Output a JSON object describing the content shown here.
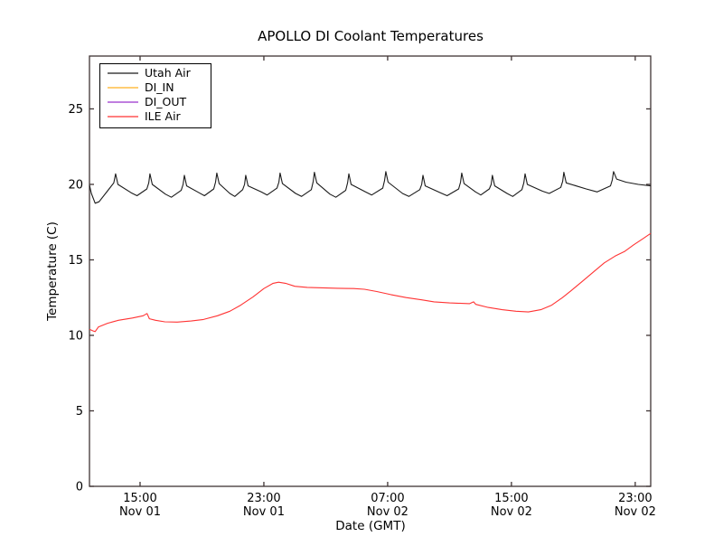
{
  "page": {
    "background": "#ffffff"
  },
  "frame": {
    "spine_color": "#3f3434",
    "tick_color": "#3f3434",
    "text_color": "#000000"
  },
  "chart_data": {
    "type": "line",
    "title": "APOLLO DI Coolant Temperatures",
    "xlabel": "Date (GMT)",
    "ylabel": "Temperature (C)",
    "grid": false,
    "legend_position": "upper-left",
    "x_unit": "hours since Nov 01 00:00 GMT",
    "xlim": [
      11.73,
      48.0
    ],
    "ylim": [
      0,
      28.5
    ],
    "y_ticks": [
      0,
      5,
      10,
      15,
      20,
      25
    ],
    "x_ticks": [
      {
        "value": 15,
        "label_time": "15:00",
        "label_date": "Nov 01"
      },
      {
        "value": 23,
        "label_time": "23:00",
        "label_date": "Nov 01"
      },
      {
        "value": 31,
        "label_time": "07:00",
        "label_date": "Nov 02"
      },
      {
        "value": 39,
        "label_time": "15:00",
        "label_date": "Nov 02"
      },
      {
        "value": 47,
        "label_time": "23:00",
        "label_date": "Nov 02"
      }
    ],
    "series": [
      {
        "name": "Utah Air",
        "color": "#1a1a1a",
        "points": [
          [
            11.73,
            19.95
          ],
          [
            11.85,
            19.4
          ],
          [
            12.1,
            18.75
          ],
          [
            12.35,
            18.85
          ],
          [
            13.0,
            19.7
          ],
          [
            13.3,
            20.1
          ],
          [
            13.42,
            20.7
          ],
          [
            13.57,
            20.0
          ],
          [
            14.42,
            19.45
          ],
          [
            14.8,
            19.25
          ],
          [
            15.44,
            19.7
          ],
          [
            15.56,
            20.1
          ],
          [
            15.64,
            20.7
          ],
          [
            15.79,
            20.0
          ],
          [
            16.64,
            19.35
          ],
          [
            17.02,
            19.15
          ],
          [
            17.66,
            19.6
          ],
          [
            17.78,
            20.0
          ],
          [
            17.86,
            20.6
          ],
          [
            18.01,
            19.9
          ],
          [
            18.81,
            19.45
          ],
          [
            19.16,
            19.25
          ],
          [
            19.76,
            19.7
          ],
          [
            19.88,
            20.15
          ],
          [
            19.96,
            20.75
          ],
          [
            20.11,
            20.05
          ],
          [
            20.8,
            19.4
          ],
          [
            21.12,
            19.2
          ],
          [
            21.63,
            19.65
          ],
          [
            21.75,
            20.0
          ],
          [
            21.83,
            20.6
          ],
          [
            21.98,
            19.9
          ],
          [
            22.83,
            19.5
          ],
          [
            23.21,
            19.3
          ],
          [
            23.85,
            19.75
          ],
          [
            23.97,
            20.15
          ],
          [
            24.05,
            20.75
          ],
          [
            24.2,
            20.05
          ],
          [
            25.05,
            19.4
          ],
          [
            25.43,
            19.2
          ],
          [
            26.07,
            19.65
          ],
          [
            26.19,
            20.2
          ],
          [
            26.27,
            20.8
          ],
          [
            26.42,
            20.1
          ],
          [
            27.27,
            19.35
          ],
          [
            27.65,
            19.15
          ],
          [
            28.29,
            19.6
          ],
          [
            28.41,
            20.1
          ],
          [
            28.49,
            20.7
          ],
          [
            28.64,
            20.0
          ],
          [
            29.57,
            19.5
          ],
          [
            29.97,
            19.3
          ],
          [
            30.68,
            19.75
          ],
          [
            30.8,
            20.25
          ],
          [
            30.88,
            20.85
          ],
          [
            31.03,
            20.15
          ],
          [
            31.96,
            19.4
          ],
          [
            32.37,
            19.2
          ],
          [
            33.08,
            19.65
          ],
          [
            33.2,
            20.0
          ],
          [
            33.28,
            20.6
          ],
          [
            33.43,
            19.9
          ],
          [
            34.41,
            19.45
          ],
          [
            34.84,
            19.25
          ],
          [
            35.59,
            19.7
          ],
          [
            35.71,
            20.15
          ],
          [
            35.79,
            20.75
          ],
          [
            35.94,
            20.05
          ],
          [
            36.68,
            19.5
          ],
          [
            37.02,
            19.3
          ],
          [
            37.57,
            19.7
          ],
          [
            37.69,
            20.0
          ],
          [
            37.77,
            20.6
          ],
          [
            37.92,
            19.9
          ],
          [
            38.72,
            19.4
          ],
          [
            39.08,
            19.2
          ],
          [
            39.68,
            19.65
          ],
          [
            39.8,
            20.1
          ],
          [
            39.88,
            20.7
          ],
          [
            40.03,
            20.0
          ],
          [
            41.01,
            19.55
          ],
          [
            41.44,
            19.4
          ],
          [
            42.19,
            19.8
          ],
          [
            42.31,
            20.2
          ],
          [
            42.39,
            20.8
          ],
          [
            42.54,
            20.1
          ],
          [
            43.83,
            19.7
          ],
          [
            44.54,
            19.5
          ],
          [
            45.4,
            19.9
          ],
          [
            45.52,
            20.3
          ],
          [
            45.6,
            20.85
          ],
          [
            45.8,
            20.35
          ],
          [
            46.4,
            20.15
          ],
          [
            47.2,
            20.0
          ],
          [
            48.0,
            19.9
          ]
        ]
      },
      {
        "name": "DI_IN",
        "color": "#ffb020",
        "points": []
      },
      {
        "name": "DI_OUT",
        "color": "#9932cc",
        "points": []
      },
      {
        "name": "ILE Air",
        "color": "#ff3333",
        "points": [
          [
            11.73,
            10.4
          ],
          [
            11.95,
            10.3
          ],
          [
            12.1,
            10.25
          ],
          [
            12.3,
            10.55
          ],
          [
            12.9,
            10.8
          ],
          [
            13.6,
            11.0
          ],
          [
            14.5,
            11.15
          ],
          [
            15.2,
            11.3
          ],
          [
            15.45,
            11.45
          ],
          [
            15.6,
            11.1
          ],
          [
            16.0,
            11.0
          ],
          [
            16.6,
            10.9
          ],
          [
            17.4,
            10.88
          ],
          [
            18.3,
            10.95
          ],
          [
            19.1,
            11.05
          ],
          [
            20.0,
            11.3
          ],
          [
            20.8,
            11.6
          ],
          [
            21.5,
            12.0
          ],
          [
            22.3,
            12.55
          ],
          [
            23.0,
            13.1
          ],
          [
            23.6,
            13.45
          ],
          [
            23.95,
            13.52
          ],
          [
            24.4,
            13.45
          ],
          [
            25.0,
            13.25
          ],
          [
            25.8,
            13.18
          ],
          [
            26.8,
            13.15
          ],
          [
            27.8,
            13.12
          ],
          [
            28.8,
            13.1
          ],
          [
            29.5,
            13.05
          ],
          [
            30.3,
            12.9
          ],
          [
            31.2,
            12.7
          ],
          [
            32.2,
            12.5
          ],
          [
            33.2,
            12.35
          ],
          [
            34.0,
            12.22
          ],
          [
            35.0,
            12.15
          ],
          [
            36.3,
            12.1
          ],
          [
            36.55,
            12.22
          ],
          [
            36.7,
            12.05
          ],
          [
            37.5,
            11.85
          ],
          [
            38.4,
            11.7
          ],
          [
            39.3,
            11.6
          ],
          [
            40.1,
            11.55
          ],
          [
            40.9,
            11.7
          ],
          [
            41.6,
            12.0
          ],
          [
            42.3,
            12.5
          ],
          [
            42.9,
            13.0
          ],
          [
            43.6,
            13.6
          ],
          [
            44.3,
            14.2
          ],
          [
            45.0,
            14.8
          ],
          [
            45.7,
            15.25
          ],
          [
            46.3,
            15.55
          ],
          [
            46.9,
            16.0
          ],
          [
            47.5,
            16.4
          ],
          [
            48.0,
            16.75
          ]
        ]
      }
    ]
  }
}
